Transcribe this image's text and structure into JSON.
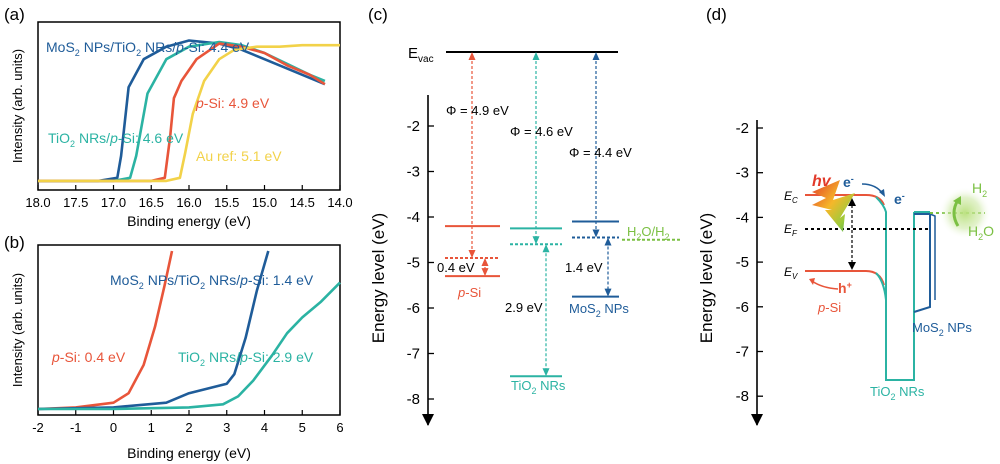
{
  "colors": {
    "red": "#E8553A",
    "teal": "#2BB3A3",
    "blue": "#1F5C99",
    "yellow": "#F2D249",
    "green": "#7BC043",
    "axis": "#000000",
    "grey": "#555555"
  },
  "panels": {
    "a": {
      "letter": "(a)"
    },
    "b": {
      "letter": "(b)"
    },
    "c": {
      "letter": "(c)"
    },
    "d": {
      "letter": "(d)"
    }
  },
  "chart_data": [
    {
      "id": "a",
      "type": "line",
      "xlabel": "Binding energy (eV)",
      "ylabel": "Intensity (arb. units)",
      "xlim": [
        18.0,
        14.0
      ],
      "x_inverted": true,
      "xticks": [
        "18.0",
        "17.5",
        "17.0",
        "16.5",
        "16.0",
        "15.5",
        "15.0",
        "14.5",
        "14.0"
      ],
      "series": [
        {
          "name": "MoS2 NPs/TiO2 NRs/p-Si",
          "label_main": "MoS",
          "label_sub": "2",
          "label_rest": " NPs/TiO",
          "label_sub2": "2",
          "label_rest2": " NRs/",
          "label_ital": "p",
          "label_end": "-Si: 4.4 eV",
          "color": "blue",
          "x": [
            18.0,
            17.2,
            16.95,
            16.9,
            16.8,
            16.6,
            16.3,
            16.0,
            15.6,
            15.3,
            15.0,
            14.7,
            14.4,
            14.2
          ],
          "y": [
            0.02,
            0.02,
            0.04,
            0.18,
            0.62,
            0.8,
            0.88,
            0.92,
            0.9,
            0.86,
            0.8,
            0.74,
            0.68,
            0.64
          ]
        },
        {
          "name": "TiO2 NRs/p-Si",
          "label_main": "TiO",
          "label_sub": "2",
          "label_rest": " NRs/",
          "label_ital": "p",
          "label_end": "-Si: 4.6 eV",
          "color": "teal",
          "x": [
            18.0,
            17.0,
            16.78,
            16.7,
            16.55,
            16.3,
            16.0,
            15.6,
            15.3,
            15.0,
            14.7,
            14.4,
            14.2
          ],
          "y": [
            0.02,
            0.02,
            0.04,
            0.18,
            0.58,
            0.8,
            0.88,
            0.91,
            0.89,
            0.84,
            0.77,
            0.7,
            0.66
          ]
        },
        {
          "name": "p-Si",
          "label_ital": "p",
          "label_end": "-Si: 4.9 eV",
          "color": "red",
          "x": [
            18.0,
            16.5,
            16.32,
            16.25,
            16.2,
            16.1,
            15.9,
            15.6,
            15.3,
            15.0,
            14.7,
            14.4,
            14.2
          ],
          "y": [
            0.02,
            0.02,
            0.04,
            0.3,
            0.55,
            0.66,
            0.8,
            0.9,
            0.88,
            0.84,
            0.76,
            0.7,
            0.64
          ]
        },
        {
          "name": "Au ref",
          "label_end": "Au ref: 5.1 eV",
          "color": "yellow",
          "x": [
            18.0,
            16.3,
            16.12,
            16.05,
            15.95,
            15.8,
            15.6,
            15.4,
            15.1,
            14.8,
            14.5,
            14.2,
            14.0
          ],
          "y": [
            0.02,
            0.02,
            0.04,
            0.2,
            0.45,
            0.66,
            0.8,
            0.86,
            0.88,
            0.88,
            0.89,
            0.89,
            0.89
          ]
        }
      ]
    },
    {
      "id": "b",
      "type": "line",
      "xlabel": "Binding energy (eV)",
      "ylabel": "Intensity (arb. units)",
      "xlim": [
        -2,
        6
      ],
      "xticks": [
        "-2",
        "-1",
        "0",
        "1",
        "2",
        "3",
        "4",
        "5",
        "6"
      ],
      "series": [
        {
          "name": "p-Si",
          "label_ital": "p",
          "label_end": "-Si: 0.4 eV",
          "color": "red",
          "x": [
            -2,
            -1,
            0,
            0.4,
            0.8,
            1.1,
            1.35,
            1.55
          ],
          "y": [
            0.0,
            0.01,
            0.04,
            0.1,
            0.28,
            0.52,
            0.78,
            1.0
          ]
        },
        {
          "name": "MoS2 NPs/TiO2 NRs/p-Si",
          "label_main": "MoS",
          "label_sub": "2",
          "label_rest": " NPs/TiO",
          "label_sub2": "2",
          "label_rest2": " NRs/",
          "label_ital": "p",
          "label_end": "-Si: 1.4 eV",
          "color": "blue",
          "x": [
            -2,
            0,
            1.4,
            2.0,
            2.5,
            3.0,
            3.2,
            3.5,
            3.8,
            4.1
          ],
          "y": [
            0.0,
            0.01,
            0.04,
            0.1,
            0.13,
            0.16,
            0.22,
            0.45,
            0.75,
            1.0
          ]
        },
        {
          "name": "TiO2 NRs/p-Si",
          "label_main": "TiO",
          "label_sub": "2",
          "label_rest": " NRs/",
          "label_ital": "p",
          "label_end": "-Si: 2.9 eV",
          "color": "teal",
          "x": [
            -2,
            0,
            2.0,
            2.9,
            3.3,
            3.7,
            4.2,
            4.6,
            5.0,
            5.5,
            6.0
          ],
          "y": [
            0.0,
            0.0,
            0.01,
            0.03,
            0.08,
            0.18,
            0.34,
            0.48,
            0.58,
            0.68,
            0.8
          ]
        }
      ]
    },
    {
      "id": "c",
      "type": "diagram",
      "ylabel": "Energy level (eV)",
      "ylim": [
        -8.3,
        -0.4
      ],
      "yticks": [
        "-2",
        "-3",
        "-4",
        "-5",
        "-6",
        "-7",
        "-8"
      ],
      "evac_label": "E",
      "evac_sub": "vac",
      "work_functions": [
        {
          "label": "Φ = 4.9 eV",
          "color": "red"
        },
        {
          "label": "Φ = 4.6 eV",
          "color": "teal"
        },
        {
          "label": "Φ = 4.4 eV",
          "color": "blue"
        }
      ],
      "levels": {
        "pSi_cb": -4.2,
        "pSi_fermi": -4.9,
        "pSi_vb": -5.3,
        "TiO2_cb": -4.25,
        "TiO2_fermi": -4.6,
        "TiO2_vb": -7.5,
        "MoS2_cb": -4.1,
        "MoS2_fermi": -4.45,
        "MoS2_vb": -5.75,
        "redox": -4.5
      },
      "gaps": [
        {
          "label": "0.4 eV"
        },
        {
          "label": "2.9 eV"
        },
        {
          "label": "1.4 eV"
        }
      ],
      "material_labels": {
        "pSi_ital": "p",
        "pSi_rest": "-Si",
        "TiO2_main": "TiO",
        "TiO2_sub": "2",
        "TiO2_rest": " NRs",
        "MoS2_main": "MoS",
        "MoS2_sub": "2",
        "MoS2_rest": " NPs",
        "redox_main": "H",
        "redox_sub": "2",
        "redox_mid": "O/H",
        "redox_sub2": "2"
      }
    },
    {
      "id": "d",
      "type": "diagram",
      "ylabel": "Energy level (eV)",
      "ylim": [
        -8.3,
        -1.5
      ],
      "yticks": [
        "-2",
        "-3",
        "-4",
        "-5",
        "-6",
        "-7",
        "-8"
      ],
      "labels": {
        "hv": "hv",
        "ec": "E",
        "ec_sub": "C",
        "ef": "E",
        "ef_sub": "F",
        "ev": "E",
        "ev_sub": "V",
        "electron": "e",
        "electron_sup": "-",
        "hole": "h",
        "hole_sup": "+",
        "pSi_ital": "p",
        "pSi_rest": "-Si",
        "TiO2_main": "TiO",
        "TiO2_sub": "2",
        "TiO2_rest": " NRs",
        "MoS2_main": "MoS",
        "MoS2_sub": "2",
        "MoS2_rest": " NPs",
        "h2_main": "H",
        "h2_sub": "2",
        "h2o_main": "H",
        "h2o_sub": "2",
        "h2o_rest": "O"
      }
    }
  ]
}
